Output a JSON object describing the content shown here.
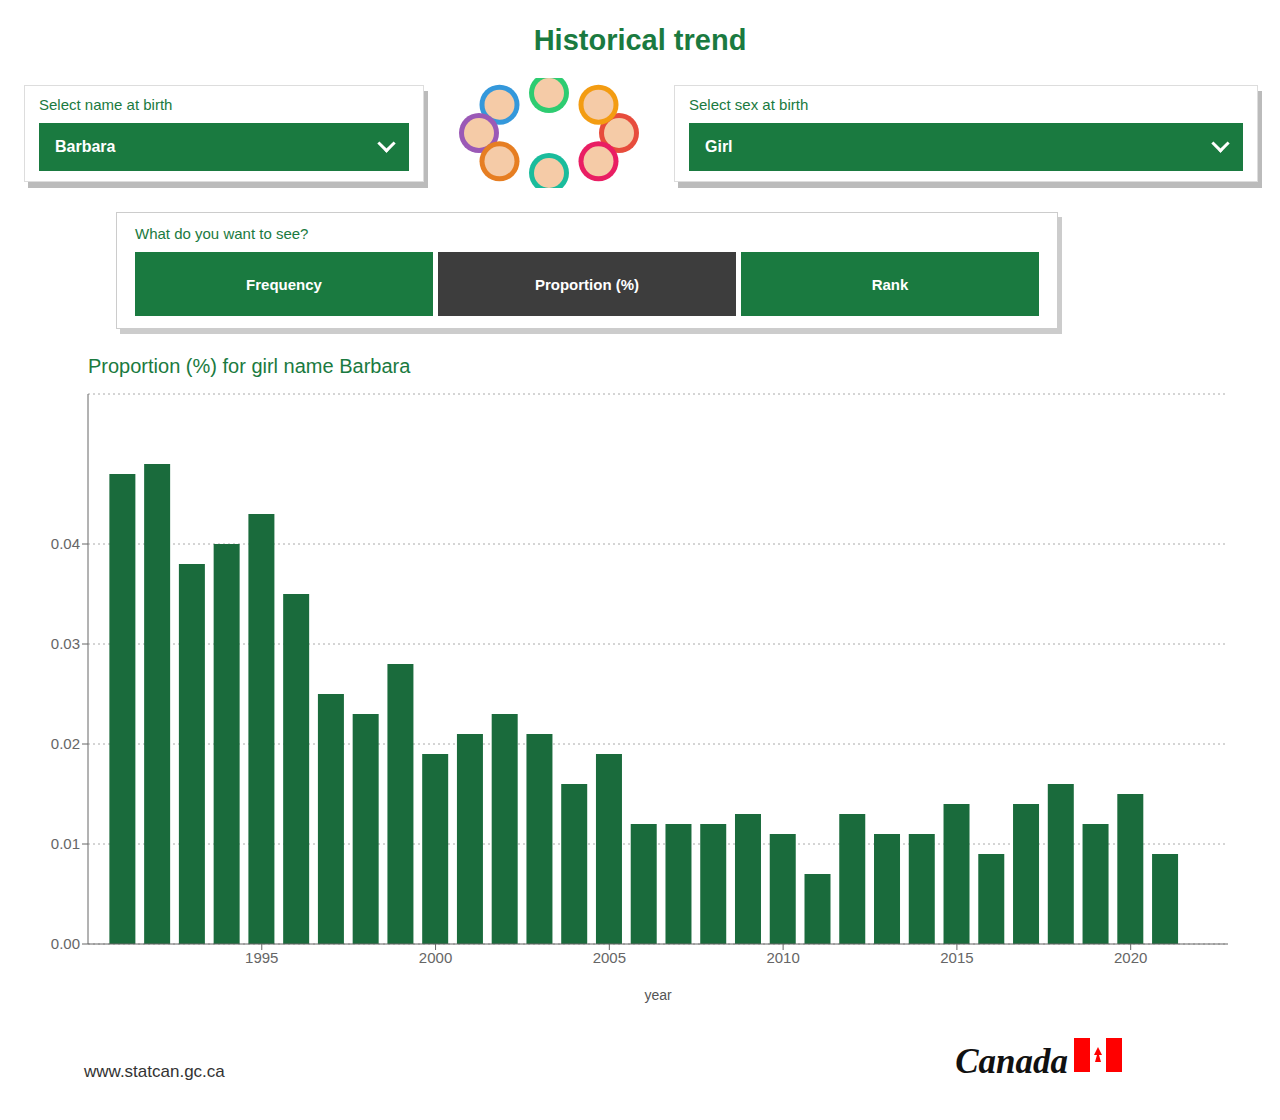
{
  "chart_data": {
    "type": "bar",
    "title": "Historical trend",
    "subtitle": "Proportion (%) for girl name Barbara",
    "xlabel": "year",
    "x": [
      1991,
      1992,
      1993,
      1994,
      1995,
      1996,
      1997,
      1998,
      1999,
      2000,
      2001,
      2002,
      2003,
      2004,
      2005,
      2006,
      2007,
      2008,
      2009,
      2010,
      2011,
      2012,
      2013,
      2014,
      2015,
      2016,
      2017,
      2018,
      2019,
      2020,
      2021
    ],
    "values": [
      0.047,
      0.048,
      0.038,
      0.04,
      0.043,
      0.035,
      0.025,
      0.023,
      0.028,
      0.019,
      0.021,
      0.023,
      0.021,
      0.016,
      0.019,
      0.012,
      0.012,
      0.012,
      0.013,
      0.011,
      0.007,
      0.013,
      0.011,
      0.011,
      0.014,
      0.009,
      0.014,
      0.016,
      0.012,
      0.015,
      0.009
    ],
    "color": "#1a6b3c",
    "xlim": [
      1990,
      2022.8
    ],
    "xticks": [
      1995,
      2000,
      2005,
      2010,
      2015,
      2020
    ],
    "ylim": [
      0,
      0.055
    ],
    "yticks": [
      {
        "value": 0,
        "label": "0.00"
      },
      0.01,
      0.02,
      0.03,
      0.04
    ],
    "grid": true,
    "annotations": [
      "Select name at birth",
      "Barbara",
      "Select sex at birth",
      "Girl",
      "What do you want to see?",
      "Frequency",
      "Proportion (%)",
      "Rank",
      "www.statcan.gc.ca",
      "Canada"
    ]
  }
}
